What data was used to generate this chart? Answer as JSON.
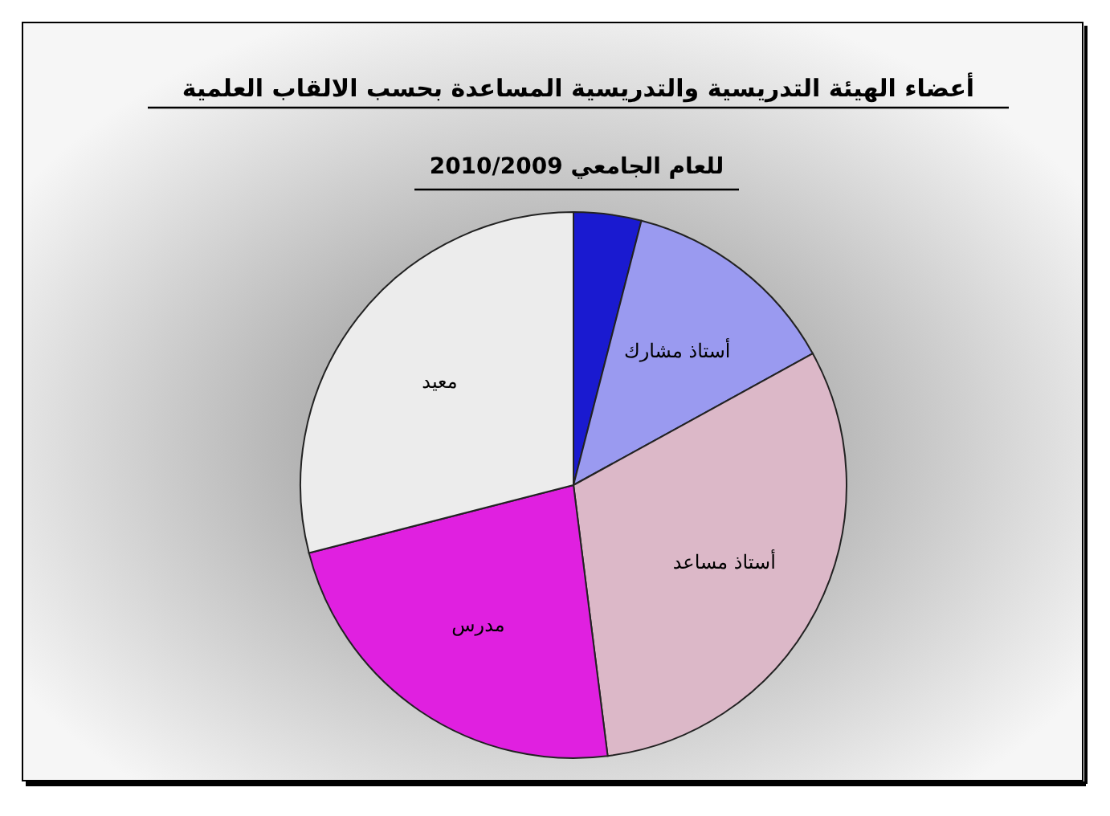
{
  "chart_data": {
    "type": "pie",
    "title": "أعضاء الهيئة التدريسية والتدريسية المساعدة بحسب الالقاب العلمية",
    "subtitle": "للعام الجامعي 2010/2009",
    "categories": [
      null,
      "أستاذ مشارك",
      "أستاذ مساعد",
      "مدرس",
      "معيد"
    ],
    "values": [
      4,
      13,
      31,
      23,
      29
    ],
    "colors": [
      "#1a1ad0",
      "#9a9af0",
      "#dcb8c8",
      "#e020e0",
      "#ececec"
    ]
  }
}
